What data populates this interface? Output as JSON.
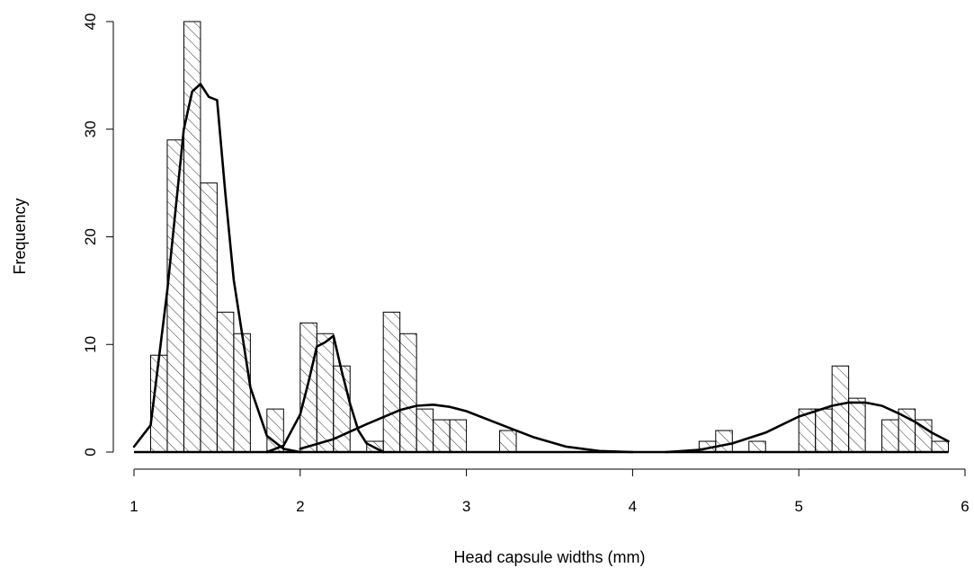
{
  "chart_data": {
    "type": "bar",
    "subtype": "histogram with fitted normal mixture density curves",
    "title": "",
    "xlabel": "Head capsule widths (mm)",
    "ylabel": "Frequency",
    "xlim": [
      1,
      6
    ],
    "ylim": [
      0,
      40
    ],
    "xticks": [
      1,
      2,
      3,
      4,
      5,
      6
    ],
    "yticks": [
      0,
      10,
      20,
      30,
      40
    ],
    "xtick_labels": [
      "1",
      "2",
      "3",
      "4",
      "5",
      "6"
    ],
    "ytick_labels": [
      "0",
      "10",
      "20",
      "30",
      "40"
    ],
    "bin_width": 0.1,
    "bar_fill": "diagonal hatching",
    "bins": [
      {
        "x0": 1.1,
        "x1": 1.2,
        "count": 9
      },
      {
        "x0": 1.2,
        "x1": 1.3,
        "count": 29
      },
      {
        "x0": 1.3,
        "x1": 1.4,
        "count": 40
      },
      {
        "x0": 1.4,
        "x1": 1.5,
        "count": 25
      },
      {
        "x0": 1.5,
        "x1": 1.6,
        "count": 13
      },
      {
        "x0": 1.6,
        "x1": 1.7,
        "count": 11
      },
      {
        "x0": 1.8,
        "x1": 1.9,
        "count": 4
      },
      {
        "x0": 2.0,
        "x1": 2.1,
        "count": 12
      },
      {
        "x0": 2.1,
        "x1": 2.2,
        "count": 11
      },
      {
        "x0": 2.2,
        "x1": 2.3,
        "count": 8
      },
      {
        "x0": 2.4,
        "x1": 2.5,
        "count": 1
      },
      {
        "x0": 2.5,
        "x1": 2.6,
        "count": 13
      },
      {
        "x0": 2.6,
        "x1": 2.7,
        "count": 11
      },
      {
        "x0": 2.7,
        "x1": 2.8,
        "count": 4
      },
      {
        "x0": 2.8,
        "x1": 2.9,
        "count": 3
      },
      {
        "x0": 2.9,
        "x1": 3.0,
        "count": 3
      },
      {
        "x0": 3.2,
        "x1": 3.3,
        "count": 2
      },
      {
        "x0": 4.4,
        "x1": 4.5,
        "count": 1
      },
      {
        "x0": 4.5,
        "x1": 4.6,
        "count": 2
      },
      {
        "x0": 4.7,
        "x1": 4.8,
        "count": 1
      },
      {
        "x0": 5.0,
        "x1": 5.1,
        "count": 4
      },
      {
        "x0": 5.1,
        "x1": 5.2,
        "count": 4
      },
      {
        "x0": 5.2,
        "x1": 5.3,
        "count": 8
      },
      {
        "x0": 5.3,
        "x1": 5.4,
        "count": 5
      },
      {
        "x0": 5.5,
        "x1": 5.6,
        "count": 3
      },
      {
        "x0": 5.6,
        "x1": 5.7,
        "count": 4
      },
      {
        "x0": 5.7,
        "x1": 5.8,
        "count": 3
      },
      {
        "x0": 5.8,
        "x1": 5.9,
        "count": 1
      }
    ],
    "curves": [
      {
        "x": [
          1.0,
          1.1,
          1.2,
          1.3,
          1.35,
          1.4,
          1.45,
          1.5,
          1.55,
          1.6,
          1.7,
          1.8,
          1.9,
          2.0
        ],
        "y": [
          0.5,
          2.5,
          15.0,
          30.0,
          33.5,
          34.2,
          33.0,
          32.7,
          24.0,
          16.0,
          6.0,
          1.5,
          0.3,
          0.0
        ]
      },
      {
        "x": [
          1.8,
          1.9,
          2.0,
          2.05,
          2.1,
          2.15,
          2.2,
          2.25,
          2.3,
          2.35,
          2.4,
          2.5
        ],
        "y": [
          0.0,
          0.6,
          3.5,
          6.5,
          9.8,
          10.2,
          10.8,
          7.5,
          4.5,
          2.0,
          0.8,
          0.0
        ]
      },
      {
        "x": [
          2.0,
          2.2,
          2.4,
          2.6,
          2.7,
          2.8,
          2.9,
          3.0,
          3.2,
          3.4,
          3.6,
          3.8,
          4.0
        ],
        "y": [
          0.3,
          1.2,
          2.6,
          3.9,
          4.3,
          4.4,
          4.2,
          3.8,
          2.6,
          1.4,
          0.5,
          0.1,
          0.0
        ]
      },
      {
        "x": [
          4.2,
          4.4,
          4.6,
          4.8,
          5.0,
          5.2,
          5.3,
          5.4,
          5.5,
          5.6,
          5.7,
          5.8,
          5.9
        ],
        "y": [
          0.0,
          0.2,
          0.8,
          1.8,
          3.3,
          4.3,
          4.6,
          4.6,
          4.3,
          3.6,
          2.8,
          1.8,
          1.0
        ]
      }
    ],
    "baseline": {
      "x0": 1.0,
      "x1": 5.9,
      "y": 0
    },
    "grid": false,
    "legend": "none"
  }
}
